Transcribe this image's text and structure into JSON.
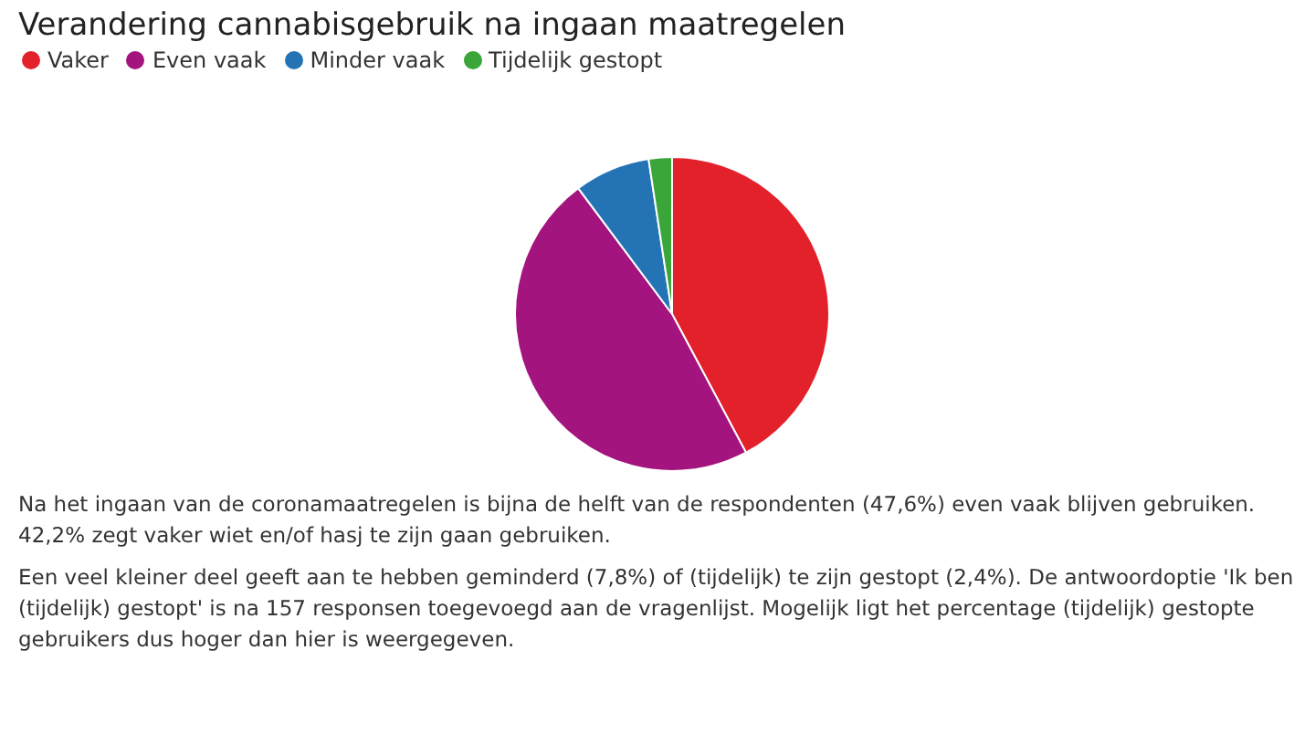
{
  "chart_data": {
    "type": "pie",
    "title": "Verandering cannabisgebruik na ingaan maatregelen",
    "categories": [
      "Vaker",
      "Even vaak",
      "Minder vaak",
      "Tijdelijk gestopt"
    ],
    "values": [
      42.2,
      47.6,
      7.8,
      2.4
    ],
    "colors": [
      "#e3212b",
      "#a4147e",
      "#2474b5",
      "#3aa63a"
    ],
    "legend": "top left",
    "annotations": [
      "Na het ingaan van de coronamaatregelen is bijna de helft van de respondenten (47,6%) even vaak blijven gebruiken. 42,2% zegt vaker wiet en/of hasj te zijn gaan gebruiken.",
      "Een veel kleiner deel geeft aan te hebben geminderd (7,8%) of (tijdelijk) te zijn gestopt (2,4%). De antwoordoptie 'Ik ben (tijdelijk) gestopt' is na 157 responsen toegevoegd aan de vragenlijst. Mogelijk ligt het percentage (tijdelijk) gestopte gebruikers dus hoger dan hier is weergegeven."
    ]
  }
}
